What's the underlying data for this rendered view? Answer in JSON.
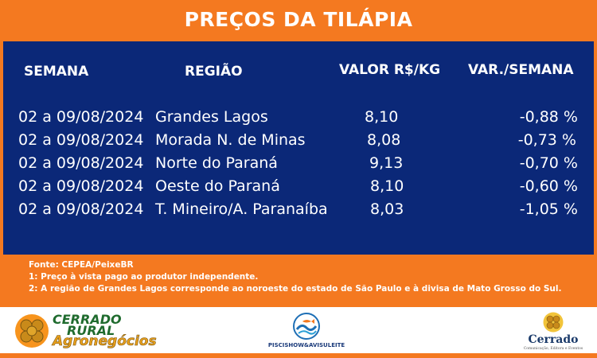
{
  "title": "PREÇOS DA TILÁPIA",
  "headers": {
    "week": "SEMANA",
    "region": "REGIÃO",
    "value": "VALOR R$/KG",
    "variation": "VAR./SEMANA"
  },
  "rows": [
    {
      "week": "02 a 09/08/2024",
      "region": "Grandes Lagos",
      "value": "8,10",
      "variation": "-0,88 %"
    },
    {
      "week": "02 a 09/08/2024",
      "region": "Morada N. de Minas",
      "value": "8,08",
      "variation": "-0,73 %"
    },
    {
      "week": "02 a 09/08/2024",
      "region": "Norte do Paraná",
      "value": "9,13",
      "variation": "-0,70 %"
    },
    {
      "week": "02 a 09/08/2024",
      "region": "Oeste do Paraná",
      "value": "8,10",
      "variation": "-0,60 %"
    },
    {
      "week": "02 a 09/08/2024",
      "region": "T. Mineiro/A. Paranaíba",
      "value": "8,03",
      "variation": "-1,05 %"
    }
  ],
  "notes": [
    "Fonte: CEPEA/PeixeBR",
    "1: Preço à vista pago ao produtor independente.",
    "2: A região de Grandes Lagos corresponde ao noroeste do estado de São Paulo e à divisa de Mato Grosso do Sul."
  ],
  "logos": {
    "left": {
      "line1": "CERRADO",
      "line2": "RURAL",
      "line3": "Agronegócios",
      "icon": "coins-icon"
    },
    "center": {
      "text": "PISCISHOW&AVISULEITE",
      "icon": "fish-wave-icon"
    },
    "right": {
      "name": "Cerrado",
      "tagline": "Comunicação, Editora e Eventos",
      "icon": "coins-icon"
    }
  },
  "colors": {
    "orange": "#f47920",
    "navy": "#0b2878",
    "white": "#ffffff",
    "logo_blue": "#1a3a7a"
  }
}
